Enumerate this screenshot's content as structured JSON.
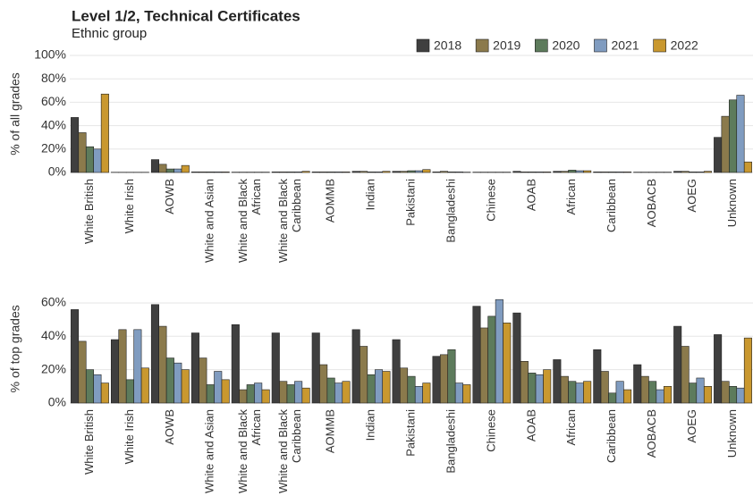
{
  "chart_data": [
    {
      "type": "bar",
      "title": "Level 1/2, Technical Certificates",
      "subtitle": "Ethnic group",
      "ylabel": "% of all grades",
      "categories": [
        "White British",
        "White Irish",
        "AOWB",
        "White and Asian",
        "White and Black African",
        "White and Black Caribbean",
        "AOMMB",
        "Indian",
        "Pakistani",
        "Bangladeshi",
        "Chinese",
        "AOAB",
        "African",
        "Caribbean",
        "AOBACB",
        "AOEG",
        "Unknown"
      ],
      "series": [
        {
          "name": "2018",
          "color": "#3f3f3f",
          "values": [
            47,
            0.2,
            11,
            0.5,
            0.3,
            0.5,
            0.5,
            1,
            1,
            0.5,
            0.3,
            1,
            1,
            0.5,
            0.3,
            1,
            30
          ]
        },
        {
          "name": "2019",
          "color": "#8b7a4c",
          "values": [
            34,
            0.2,
            7,
            0.5,
            0.3,
            0.5,
            0.5,
            1,
            1,
            1,
            0.3,
            0.5,
            1,
            0.5,
            0.3,
            1,
            48
          ]
        },
        {
          "name": "2020",
          "color": "#5d7b5c",
          "values": [
            22,
            0.2,
            3,
            0.5,
            0.3,
            0.5,
            0.5,
            0.5,
            1.5,
            0.5,
            0.3,
            0.5,
            2,
            0.5,
            0.3,
            0.5,
            62
          ]
        },
        {
          "name": "2021",
          "color": "#809cc0",
          "values": [
            20,
            0.2,
            3,
            0.5,
            0.3,
            0.5,
            0.5,
            0.5,
            1.5,
            0.5,
            0.3,
            0.5,
            1.5,
            0.5,
            0.3,
            0.5,
            66
          ]
        },
        {
          "name": "2022",
          "color": "#c9982f",
          "values": [
            67,
            0.2,
            6,
            0.5,
            0.3,
            1,
            0.5,
            1,
            2.5,
            0.3,
            0.3,
            0.5,
            1.5,
            0.5,
            0.3,
            1,
            9
          ]
        }
      ],
      "ylim": [
        0,
        100
      ],
      "yticks": [
        {
          "value": 0,
          "label": "0%"
        },
        {
          "value": 20,
          "label": "20%"
        },
        {
          "value": 40,
          "label": "40%"
        },
        {
          "value": 60,
          "label": "60%"
        },
        {
          "value": 80,
          "label": "80%"
        },
        {
          "value": 100,
          "label": "100%"
        }
      ],
      "grid": true
    },
    {
      "type": "bar",
      "ylabel": "% of top grades",
      "categories": [
        "White British",
        "White Irish",
        "AOWB",
        "White and Asian",
        "White and Black African",
        "White and Black Caribbean",
        "AOMMB",
        "Indian",
        "Pakistani",
        "Bangladeshi",
        "Chinese",
        "AOAB",
        "African",
        "Caribbean",
        "AOBACB",
        "AOEG",
        "Unknown"
      ],
      "series": [
        {
          "color": "#3f3f3f",
          "values": [
            56,
            38,
            59,
            42,
            47,
            42,
            42,
            44,
            38,
            28,
            58,
            54,
            26,
            32,
            23,
            46,
            41
          ]
        },
        {
          "color": "#8b7a4c",
          "values": [
            37,
            44,
            46,
            27,
            8,
            13,
            23,
            34,
            21,
            29,
            45,
            25,
            16,
            19,
            16,
            34,
            13
          ]
        },
        {
          "color": "#5d7b5c",
          "values": [
            20,
            14,
            27,
            11,
            11,
            11,
            15,
            17,
            16,
            32,
            52,
            18,
            13,
            6,
            13,
            12,
            10
          ]
        },
        {
          "color": "#809cc0",
          "values": [
            17,
            44,
            24,
            19,
            12,
            13,
            12,
            20,
            10,
            12,
            62,
            17,
            12,
            13,
            8,
            15,
            9
          ]
        },
        {
          "color": "#c9982f",
          "values": [
            12,
            21,
            20,
            14,
            8,
            9,
            13,
            19,
            12,
            11,
            48,
            20,
            13,
            8,
            10,
            10,
            39
          ]
        }
      ],
      "ylim": [
        0,
        65
      ],
      "yticks": [
        {
          "value": 0,
          "label": "0%"
        },
        {
          "value": 20,
          "label": "20%"
        },
        {
          "value": 40,
          "label": "40%"
        },
        {
          "value": 60,
          "label": "60%"
        }
      ],
      "grid": true
    }
  ]
}
